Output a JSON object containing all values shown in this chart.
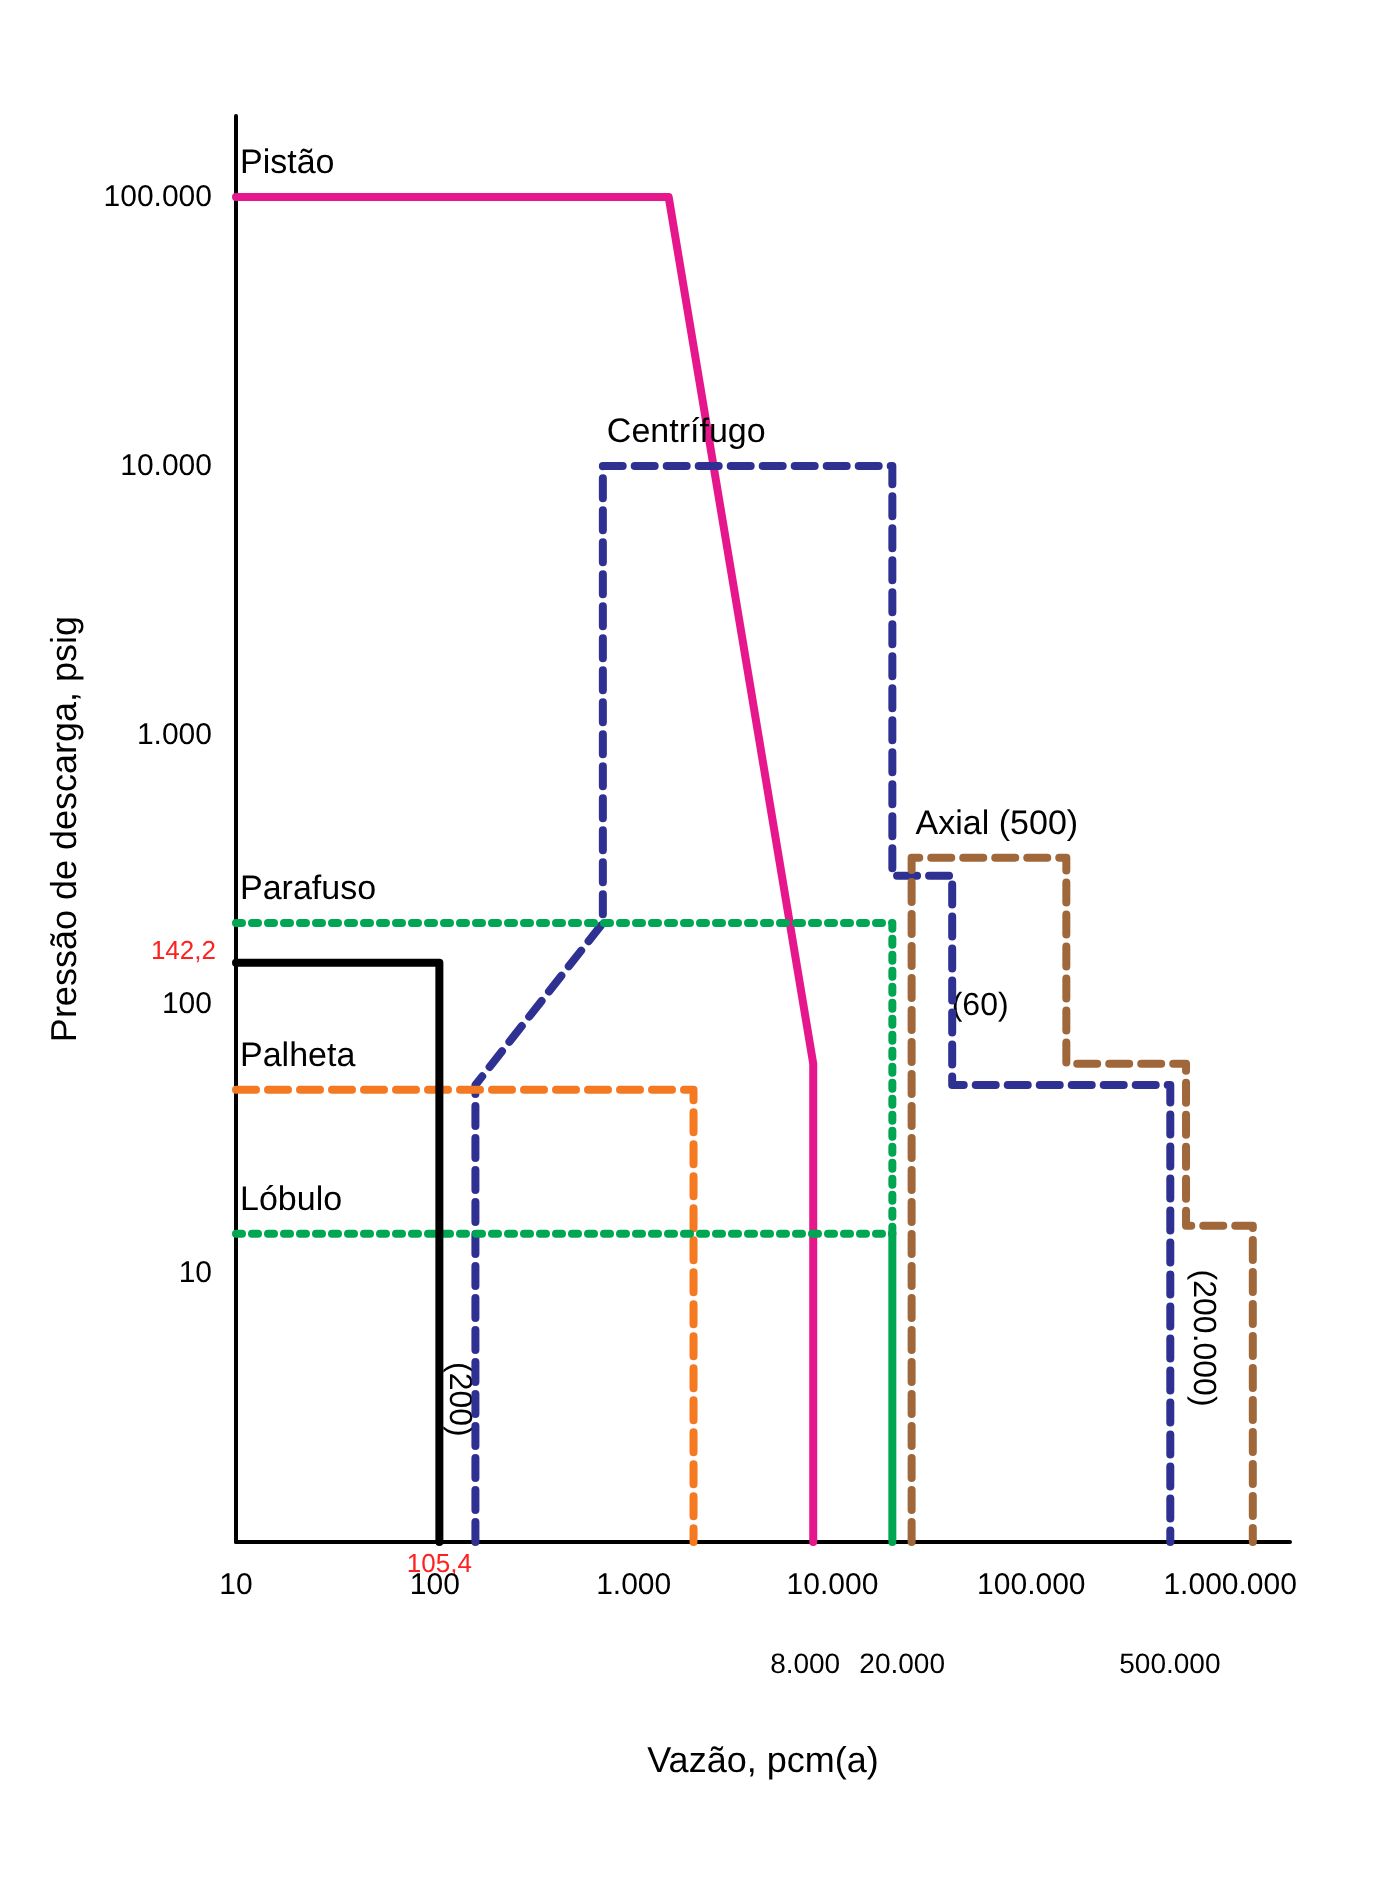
{
  "chart_data": {
    "type": "line",
    "log": "xy",
    "xlabel": "Vazão, pcm(a)",
    "ylabel": "Pressão de descarga, psig",
    "xlim": [
      10,
      2000000
    ],
    "xticks": [
      10,
      100,
      {
        "value": 1000,
        "label": "1.000"
      },
      {
        "value": 10000,
        "label": "10.000"
      },
      {
        "value": 100000,
        "label": "100.000"
      },
      {
        "value": 1000000,
        "label": "1.000.000"
      }
    ],
    "ylim": [
      1,
      200000
    ],
    "yticks": [
      10,
      100,
      {
        "value": 1000,
        "label": "1.000"
      },
      {
        "value": 10000,
        "label": "10.000"
      },
      {
        "value": 100000,
        "label": "100.000"
      }
    ],
    "series": [
      {
        "name": "Pistão",
        "color": "#e6168c",
        "line_style": "solid",
        "x": [
          10,
          1500,
          8000,
          8000
        ],
        "values": [
          100000,
          100000,
          60,
          1
        ]
      },
      {
        "name": "Centrífugo",
        "color": "#2e3192",
        "line_style": "dashed",
        "x": [
          160,
          160,
          700,
          700,
          20000,
          20000,
          40000,
          40000,
          500000,
          500000
        ],
        "values": [
          1,
          50,
          200,
          10000,
          10000,
          300,
          300,
          50,
          50,
          1
        ]
      },
      {
        "name": "Parafuso",
        "color": "#00a651",
        "line_style": "dotted",
        "x": [
          10,
          20000,
          20000
        ],
        "values": [
          200,
          200,
          14
        ]
      },
      {
        "name": "Palheta",
        "color": "#f47920",
        "line_style": "dashed",
        "x": [
          10,
          2000,
          2000
        ],
        "values": [
          48,
          48,
          1
        ]
      },
      {
        "name": "Lóbulo",
        "color": "#00a651",
        "line_style": "dotted",
        "x": [
          10,
          20000
        ],
        "values": [
          14,
          14
        ]
      },
      {
        "color": "#00a651",
        "line_style": "solid",
        "x": [
          20000,
          20000
        ],
        "values": [
          14,
          1
        ]
      },
      {
        "name": "Axial (500)",
        "color": "#a0673a",
        "line_style": "dashed",
        "x": [
          25000,
          25000,
          150000,
          150000,
          600000,
          600000,
          1300000,
          1300000
        ],
        "values": [
          1,
          350,
          350,
          60,
          60,
          15,
          15,
          1
        ]
      },
      {
        "color": "#000000",
        "line_style": "solid",
        "x": [
          10,
          105.4,
          105.4
        ],
        "values": [
          142.2,
          142.2,
          1
        ]
      }
    ],
    "annotations": [
      {
        "text": "142,2",
        "x": 10,
        "y": 142.2
      },
      {
        "text": "105,4",
        "x": 105.4,
        "y": 1
      },
      "8.000",
      "20.000",
      "500.000",
      "(200)",
      "(60)",
      "(200.000)"
    ]
  }
}
